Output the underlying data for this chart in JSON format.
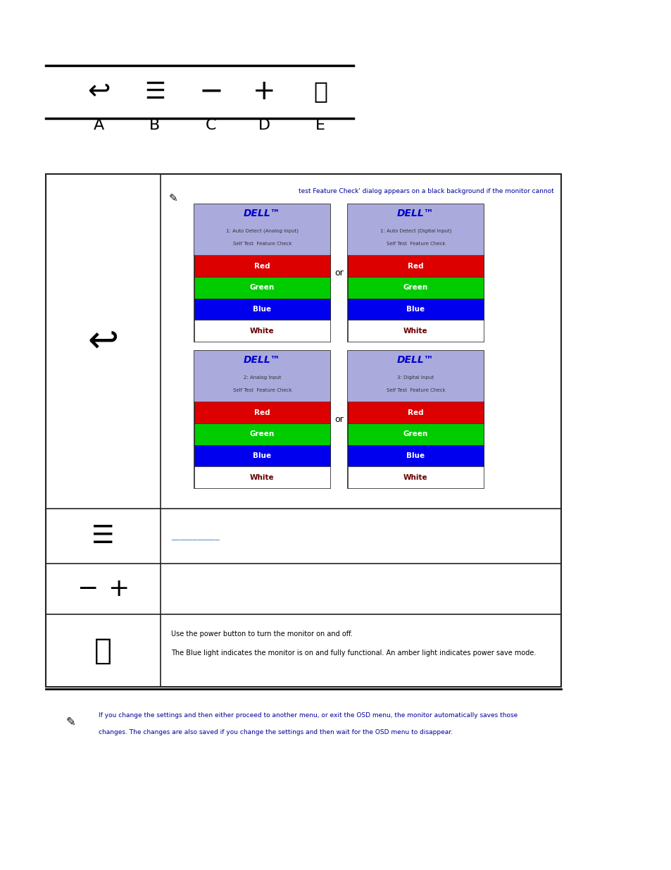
{
  "bg_color": "#ffffff",
  "note_top_text": "test Feature Check' dialog appears on a black background if the monitor cannot",
  "note_top_color": "#000099",
  "power_text1": "Use the power button to turn the monitor on and off.",
  "power_text2": "The Blue light indicates the monitor is on and fully functional. An amber light indicates power save mode.",
  "bottom_note_line1": "If you change the settings and then either proceed to another menu, or exit the OSD menu, the monitor automatically saves those",
  "bottom_note_line2": "changes. The changes are also saved if you change the settings and then wait for the OSD menu to disappear.",
  "bottom_note_color": "#000099",
  "menu_link_color": "#4488cc",
  "dell_panels": [
    {
      "title2": "1: Auto Detect (Analog Input)",
      "title3": "Self Test  Feature Check"
    },
    {
      "title2": "1: Auto Detect (Digital Input)",
      "title3": "Self Test  Feature Check"
    },
    {
      "title2": "2: Analog Input",
      "title3": "Self Test  Feature Check"
    },
    {
      "title2": "3: Digital Input",
      "title3": "Self Test  Feature Check"
    }
  ]
}
